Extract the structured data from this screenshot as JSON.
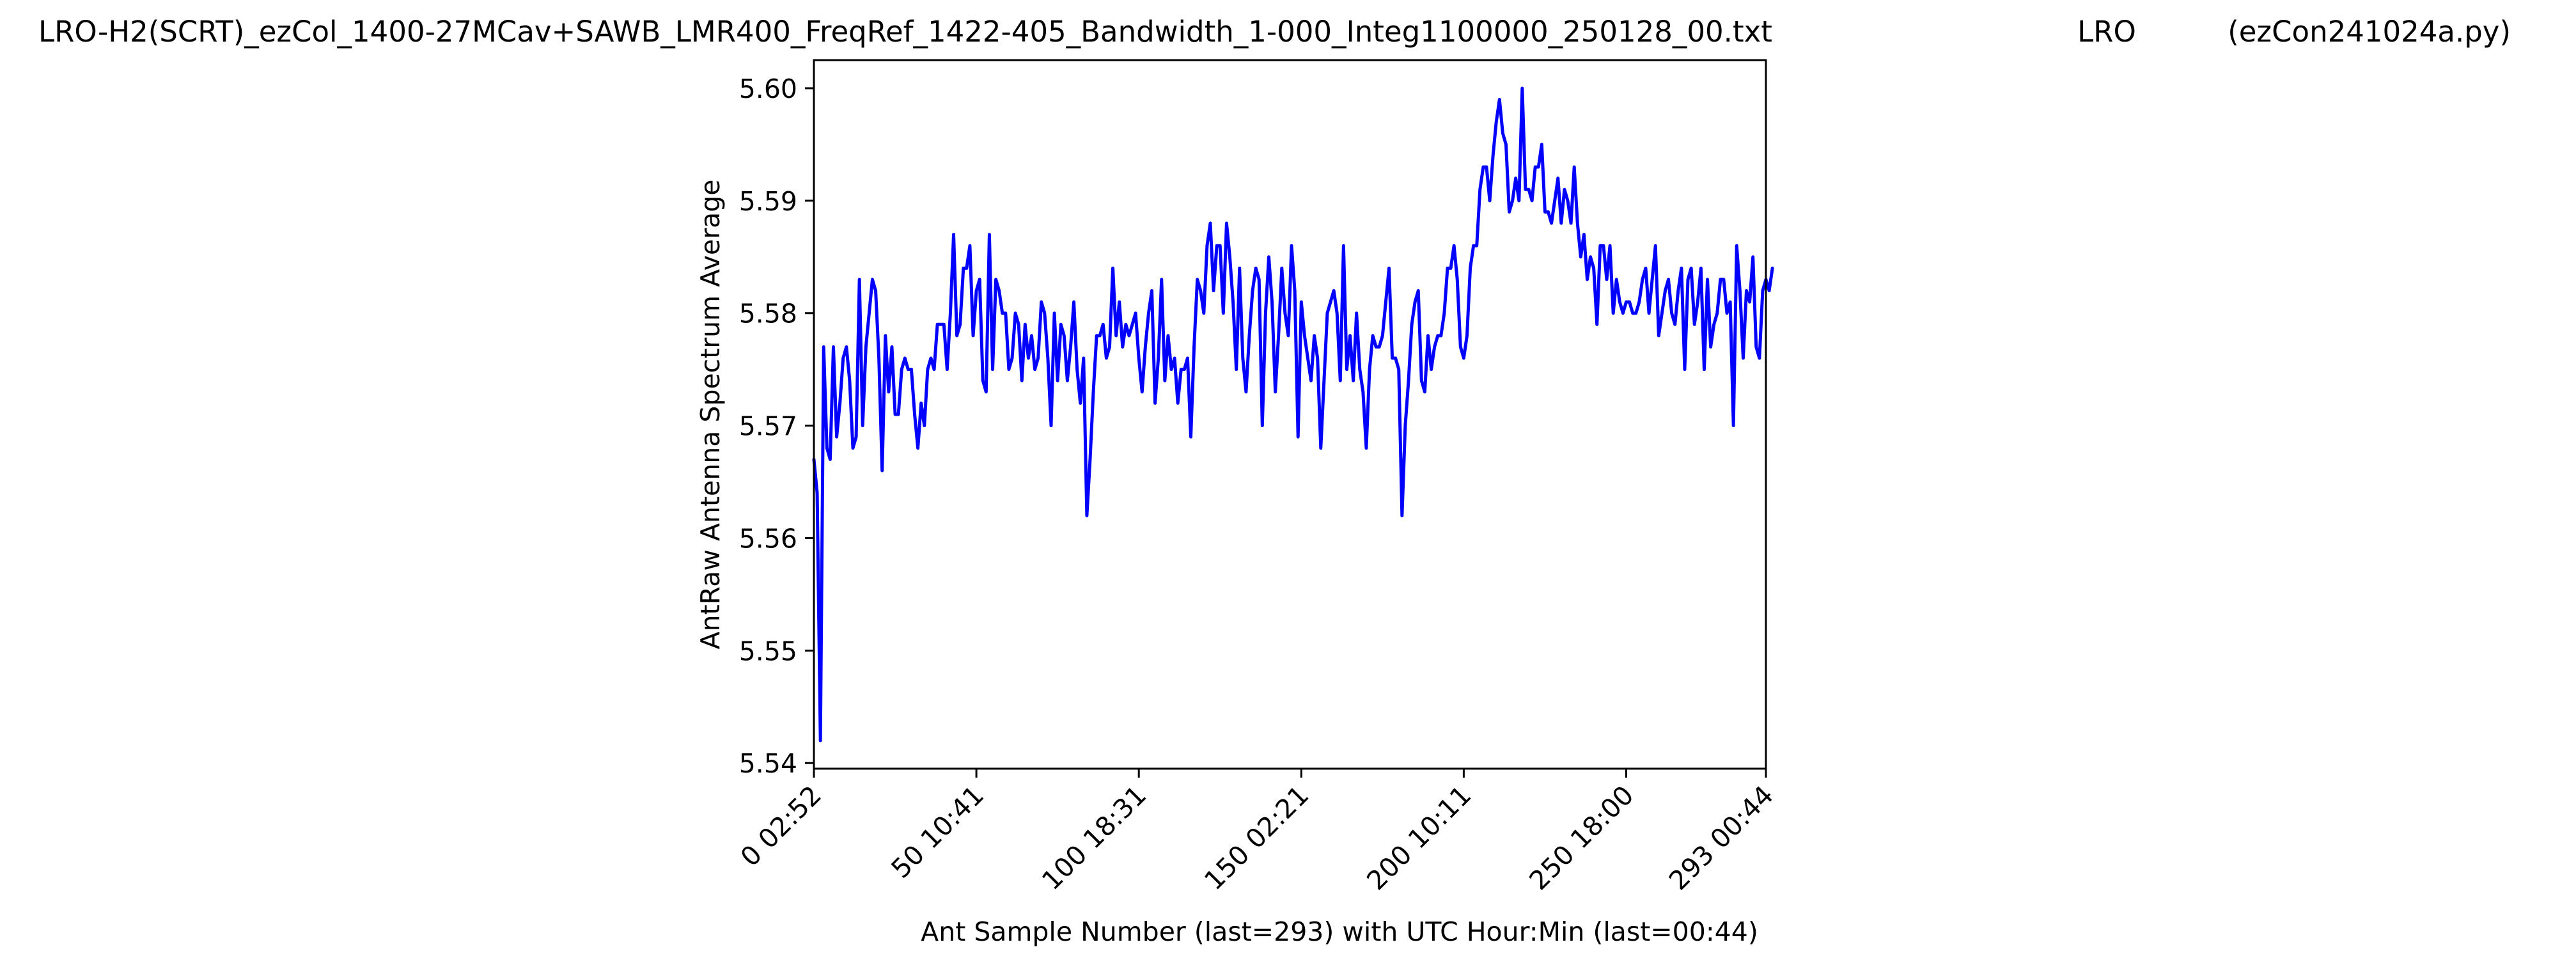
{
  "header": {
    "filename": "LRO-H2(SCRT)_ezCol_1400-27MCav+SAWB_LMR400_FreqRef_1422-405_Bandwidth_1-000_Integ1100000_250128_00.txt",
    "site": "LRO",
    "program": "(ezCon241024a.py)"
  },
  "chart_data": {
    "type": "line",
    "title": "",
    "xlabel": "Ant Sample Number (last=293) with UTC Hour:Min (last=00:44)",
    "ylabel": "AntRaw Antenna Spectrum Average",
    "xlim": [
      0,
      293
    ],
    "ylim": [
      5.5395,
      5.6025
    ],
    "grid": false,
    "legend": "none",
    "line_color": "#0000ff",
    "x_ticks": [
      {
        "value": 0,
        "label": "0  02:52"
      },
      {
        "value": 50,
        "label": "50  10:41"
      },
      {
        "value": 100,
        "label": "100  18:31"
      },
      {
        "value": 150,
        "label": "150  02:21"
      },
      {
        "value": 200,
        "label": "200  10:11"
      },
      {
        "value": 250,
        "label": "250  18:00"
      },
      {
        "value": 293,
        "label": "293  00:44"
      }
    ],
    "y_ticks": [
      {
        "value": 5.54,
        "label": "5.54"
      },
      {
        "value": 5.55,
        "label": "5.55"
      },
      {
        "value": 5.56,
        "label": "5.56"
      },
      {
        "value": 5.57,
        "label": "5.57"
      },
      {
        "value": 5.58,
        "label": "5.58"
      },
      {
        "value": 5.59,
        "label": "5.59"
      },
      {
        "value": 5.6,
        "label": "5.60"
      }
    ],
    "series": [
      {
        "values": [
          5.567,
          5.564,
          5.542,
          5.577,
          5.568,
          5.567,
          5.577,
          5.569,
          5.572,
          5.576,
          5.577,
          5.574,
          5.568,
          5.569,
          5.583,
          5.57,
          5.577,
          5.58,
          5.583,
          5.582,
          5.576,
          5.566,
          5.578,
          5.573,
          5.577,
          5.571,
          5.571,
          5.575,
          5.576,
          5.575,
          5.575,
          5.571,
          5.568,
          5.572,
          5.57,
          5.575,
          5.576,
          5.575,
          5.579,
          5.579,
          5.579,
          5.575,
          5.58,
          5.587,
          5.578,
          5.579,
          5.584,
          5.584,
          5.586,
          5.578,
          5.582,
          5.583,
          5.574,
          5.573,
          5.587,
          5.575,
          5.583,
          5.582,
          5.58,
          5.58,
          5.575,
          5.576,
          5.58,
          5.579,
          5.574,
          5.579,
          5.576,
          5.578,
          5.575,
          5.576,
          5.581,
          5.58,
          5.576,
          5.57,
          5.58,
          5.574,
          5.579,
          5.578,
          5.574,
          5.577,
          5.581,
          5.575,
          5.572,
          5.576,
          5.562,
          5.567,
          5.573,
          5.578,
          5.578,
          5.579,
          5.576,
          5.577,
          5.584,
          5.578,
          5.581,
          5.577,
          5.579,
          5.578,
          5.579,
          5.58,
          5.576,
          5.573,
          5.577,
          5.58,
          5.582,
          5.572,
          5.576,
          5.583,
          5.574,
          5.578,
          5.575,
          5.576,
          5.572,
          5.575,
          5.575,
          5.576,
          5.569,
          5.577,
          5.583,
          5.582,
          5.58,
          5.586,
          5.588,
          5.582,
          5.586,
          5.586,
          5.58,
          5.588,
          5.585,
          5.581,
          5.575,
          5.584,
          5.576,
          5.573,
          5.578,
          5.582,
          5.584,
          5.583,
          5.57,
          5.58,
          5.585,
          5.581,
          5.573,
          5.578,
          5.584,
          5.58,
          5.578,
          5.586,
          5.582,
          5.569,
          5.581,
          5.578,
          5.576,
          5.574,
          5.578,
          5.576,
          5.568,
          5.574,
          5.58,
          5.581,
          5.582,
          5.58,
          5.574,
          5.586,
          5.575,
          5.578,
          5.574,
          5.58,
          5.575,
          5.573,
          5.568,
          5.575,
          5.578,
          5.577,
          5.577,
          5.578,
          5.581,
          5.584,
          5.576,
          5.576,
          5.575,
          5.562,
          5.57,
          5.574,
          5.579,
          5.581,
          5.582,
          5.574,
          5.573,
          5.578,
          5.575,
          5.577,
          5.578,
          5.578,
          5.58,
          5.584,
          5.584,
          5.586,
          5.583,
          5.577,
          5.576,
          5.578,
          5.584,
          5.586,
          5.586,
          5.591,
          5.593,
          5.593,
          5.59,
          5.594,
          5.597,
          5.599,
          5.596,
          5.595,
          5.589,
          5.59,
          5.592,
          5.59,
          5.6,
          5.591,
          5.591,
          5.59,
          5.593,
          5.593,
          5.595,
          5.589,
          5.589,
          5.588,
          5.59,
          5.592,
          5.588,
          5.591,
          5.59,
          5.588,
          5.593,
          5.588,
          5.585,
          5.587,
          5.583,
          5.585,
          5.584,
          5.579,
          5.586,
          5.586,
          5.583,
          5.586,
          5.58,
          5.583,
          5.581,
          5.58,
          5.581,
          5.581,
          5.58,
          5.58,
          5.581,
          5.583,
          5.584,
          5.58,
          5.583,
          5.586,
          5.578,
          5.58,
          5.582,
          5.583,
          5.58,
          5.579,
          5.582,
          5.584,
          5.575,
          5.583,
          5.584,
          5.579,
          5.581,
          5.584,
          5.575,
          5.583,
          5.577,
          5.579,
          5.58,
          5.583,
          5.583,
          5.58,
          5.581,
          5.57,
          5.586,
          5.582,
          5.576,
          5.582,
          5.581,
          5.585,
          5.577,
          5.576,
          5.582,
          5.583,
          5.582,
          5.584
        ]
      }
    ]
  }
}
